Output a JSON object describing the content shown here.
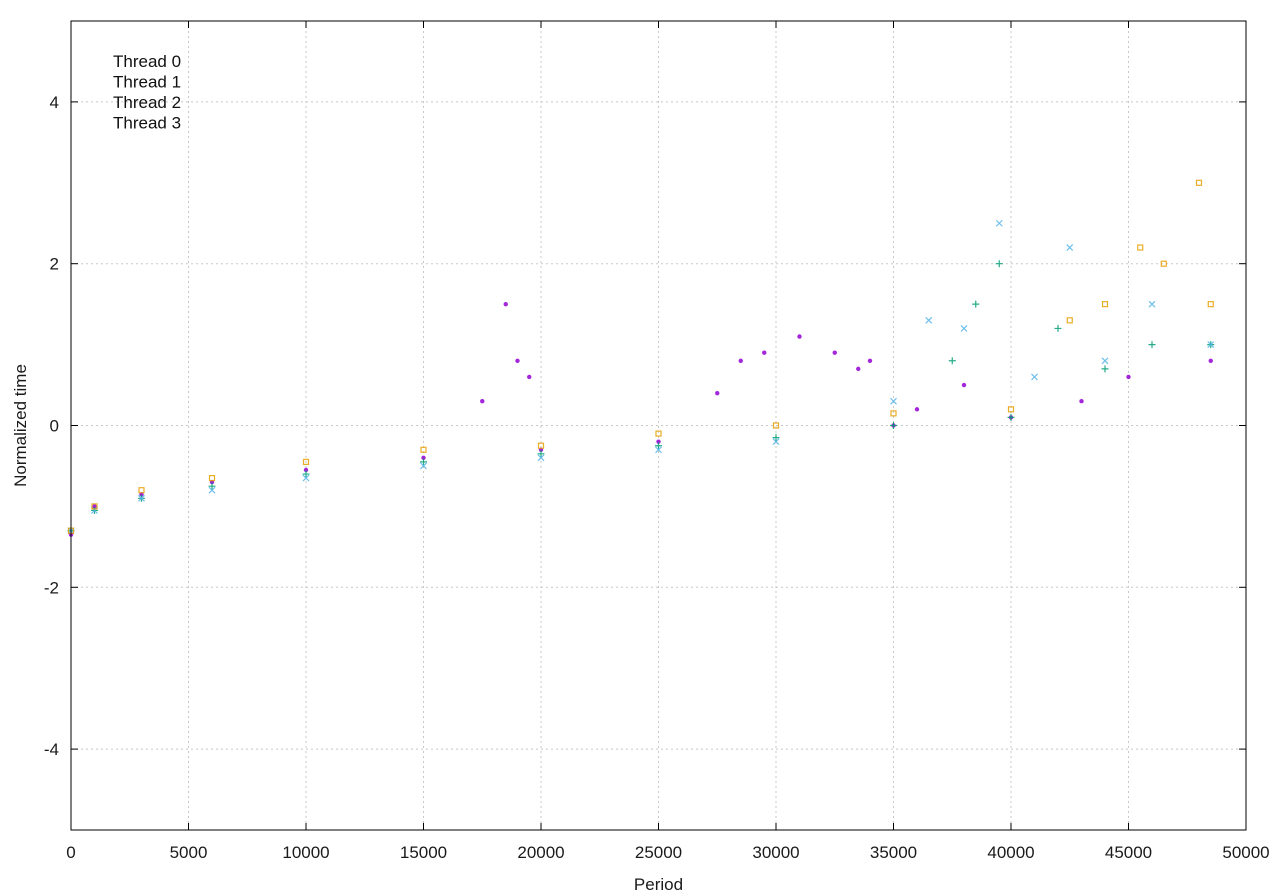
{
  "chart_data": {
    "type": "scatter",
    "title": "",
    "xlabel": "Period",
    "ylabel": "Normalized time",
    "xlim": [
      0,
      50000
    ],
    "ylim": [
      -5,
      5
    ],
    "x_ticks": [
      0,
      5000,
      10000,
      15000,
      20000,
      25000,
      30000,
      35000,
      40000,
      45000,
      50000
    ],
    "x_tick_labels": [
      "0",
      "5000",
      "10000",
      "15000",
      "20000",
      "25000",
      "30000",
      "35000",
      "40000",
      "45000",
      "50000"
    ],
    "y_ticks": [
      -4,
      -2,
      0,
      2,
      4
    ],
    "y_tick_labels": [
      "-4",
      "-2",
      "0",
      "2",
      "4"
    ],
    "grid": true,
    "legend_position": "top-left",
    "series": [
      {
        "name": "Thread 0",
        "color": "#9400d3",
        "marker": "dot",
        "points": [
          [
            0,
            -1.35
          ],
          [
            1000,
            -1.0
          ],
          [
            3000,
            -0.85
          ],
          [
            6000,
            -0.7
          ],
          [
            10000,
            -0.55
          ],
          [
            15000,
            -0.4
          ],
          [
            17500,
            0.3
          ],
          [
            18500,
            1.5
          ],
          [
            19000,
            0.8
          ],
          [
            19500,
            0.6
          ],
          [
            20000,
            -0.3
          ],
          [
            25000,
            -0.2
          ],
          [
            27500,
            0.4
          ],
          [
            28500,
            0.8
          ],
          [
            29500,
            0.9
          ],
          [
            31000,
            1.1
          ],
          [
            32500,
            0.9
          ],
          [
            33500,
            0.7
          ],
          [
            34000,
            0.8
          ],
          [
            35000,
            0.0
          ],
          [
            36000,
            0.2
          ],
          [
            38000,
            0.5
          ],
          [
            40000,
            0.1
          ],
          [
            43000,
            0.3
          ],
          [
            45000,
            0.6
          ],
          [
            48500,
            0.8
          ]
        ]
      },
      {
        "name": "Thread 1",
        "color": "#009e73",
        "marker": "plus",
        "points": [
          [
            0,
            -1.3
          ],
          [
            1000,
            -1.05
          ],
          [
            3000,
            -0.9
          ],
          [
            6000,
            -0.75
          ],
          [
            10000,
            -0.6
          ],
          [
            15000,
            -0.45
          ],
          [
            20000,
            -0.35
          ],
          [
            25000,
            -0.25
          ],
          [
            30000,
            -0.15
          ],
          [
            35000,
            0.0
          ],
          [
            37500,
            0.8
          ],
          [
            38500,
            1.5
          ],
          [
            39500,
            2.0
          ],
          [
            40000,
            0.1
          ],
          [
            42000,
            1.2
          ],
          [
            44000,
            0.7
          ],
          [
            46000,
            1.0
          ],
          [
            48500,
            1.0
          ]
        ]
      },
      {
        "name": "Thread 2",
        "color": "#56b4e9",
        "marker": "cross",
        "points": [
          [
            0,
            -1.3
          ],
          [
            1000,
            -1.05
          ],
          [
            3000,
            -0.9
          ],
          [
            6000,
            -0.8
          ],
          [
            10000,
            -0.65
          ],
          [
            15000,
            -0.5
          ],
          [
            20000,
            -0.4
          ],
          [
            25000,
            -0.3
          ],
          [
            30000,
            -0.2
          ],
          [
            35000,
            0.3
          ],
          [
            36500,
            1.3
          ],
          [
            38000,
            1.2
          ],
          [
            39500,
            2.5
          ],
          [
            41000,
            0.6
          ],
          [
            42500,
            2.2
          ],
          [
            44000,
            0.8
          ],
          [
            46000,
            1.5
          ],
          [
            48500,
            1.0
          ]
        ]
      },
      {
        "name": "Thread 3",
        "color": "#e69f00",
        "marker": "square",
        "points": [
          [
            0,
            -1.3
          ],
          [
            1000,
            -1.0
          ],
          [
            3000,
            -0.8
          ],
          [
            6000,
            -0.65
          ],
          [
            10000,
            -0.45
          ],
          [
            15000,
            -0.3
          ],
          [
            20000,
            -0.25
          ],
          [
            25000,
            -0.1
          ],
          [
            30000,
            0.0
          ],
          [
            35000,
            0.15
          ],
          [
            40000,
            0.2
          ],
          [
            42500,
            1.3
          ],
          [
            44000,
            1.5
          ],
          [
            45500,
            2.2
          ],
          [
            46500,
            2.0
          ],
          [
            48000,
            3.0
          ],
          [
            48500,
            1.5
          ]
        ]
      }
    ]
  }
}
